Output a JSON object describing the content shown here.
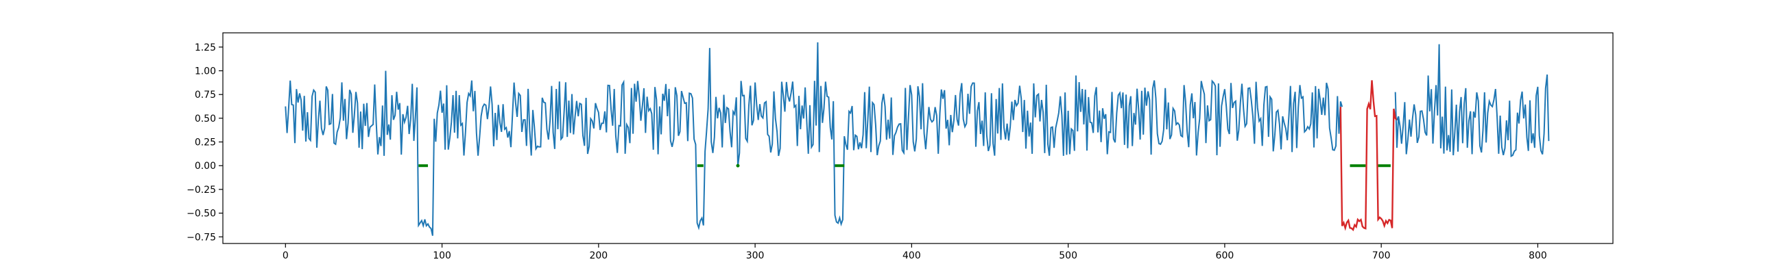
{
  "chart_data": {
    "type": "line",
    "title": "",
    "xlabel": "",
    "ylabel": "",
    "xlim": [
      -40,
      848
    ],
    "ylim": [
      -0.82,
      1.4
    ],
    "grid": false,
    "legend": "none",
    "xticks": [
      0,
      100,
      200,
      300,
      400,
      500,
      600,
      700,
      800
    ],
    "yticks": [
      -0.75,
      -0.5,
      -0.25,
      0.0,
      0.25,
      0.5,
      0.75,
      1.0,
      1.25
    ],
    "xtick_labels": [
      "0",
      "100",
      "200",
      "300",
      "400",
      "500",
      "600",
      "700",
      "800"
    ],
    "ytick_labels": [
      "−0.75",
      "−0.50",
      "−0.25",
      "0.00",
      "0.25",
      "0.50",
      "0.75",
      "1.00",
      "1.25"
    ],
    "series": [
      {
        "role": "signal",
        "color": "#1f77b4",
        "x_range": [
          0,
          807
        ],
        "baseline_range": [
          0.1,
          0.9
        ],
        "peaks": [
          [
            64,
            1.0
          ],
          [
            340,
            1.3
          ],
          [
            737,
            1.28
          ],
          [
            806,
            0.96
          ],
          [
            271,
            1.24
          ],
          [
            505,
            0.95
          ],
          [
            730,
            0.95
          ]
        ],
        "dips": [
          {
            "x": [
              85,
              93
            ],
            "y": -0.62
          },
          {
            "x": [
              94,
              94
            ],
            "y": -0.73
          },
          {
            "x": [
              263,
              267
            ],
            "y": -0.6
          },
          {
            "x": [
              289,
              289
            ],
            "y": 0.0
          },
          {
            "x": [
              351,
              356
            ],
            "y": -0.58
          }
        ]
      },
      {
        "role": "highlight",
        "color": "#d62728",
        "segments": [
          {
            "x": [
              675,
              690
            ],
            "low": -0.62
          },
          {
            "x": [
              698,
              707
            ],
            "low": -0.6
          }
        ],
        "bridge_peak": [
          694,
          0.9
        ]
      }
    ],
    "zero_markers": {
      "color": "#008000",
      "y": 0.0,
      "x_ranges": [
        [
          85,
          91
        ],
        [
          263,
          267
        ],
        [
          289,
          289
        ],
        [
          351,
          357
        ],
        [
          680,
          690
        ],
        [
          698,
          706
        ]
      ]
    }
  }
}
